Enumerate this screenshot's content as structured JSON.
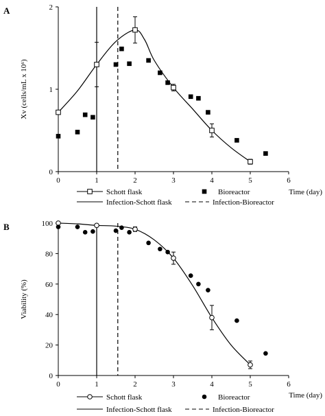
{
  "chart_data": [
    {
      "panel_label": "A",
      "type": "scatter",
      "ylabel": "Xv (cells/mL x 10⁶)",
      "xlabel": "Time (day)",
      "xlim": [
        0,
        6
      ],
      "ylim": [
        0,
        2
      ],
      "xticks": [
        0,
        1,
        2,
        3,
        4,
        5,
        6
      ],
      "yticks": [
        0,
        1,
        2
      ],
      "grid": false,
      "legend_position": "bottom",
      "series": [
        {
          "name": "Schott flask",
          "marker": "open-square",
          "x": [
            0,
            1,
            2,
            3,
            4,
            5
          ],
          "y": [
            0.72,
            1.3,
            1.72,
            1.02,
            0.5,
            0.12
          ],
          "err": [
            0.0,
            0.27,
            0.16,
            0.04,
            0.08,
            0.03
          ]
        },
        {
          "name": "Bioreactor",
          "marker": "filled-square",
          "x": [
            0.0,
            0.5,
            0.7,
            0.9,
            1.5,
            1.65,
            1.85,
            2.35,
            2.65,
            2.85,
            3.45,
            3.65,
            3.9,
            4.65,
            5.4
          ],
          "y": [
            0.43,
            0.48,
            0.69,
            0.66,
            1.3,
            1.49,
            1.31,
            1.35,
            1.2,
            1.08,
            0.91,
            0.89,
            0.72,
            0.38,
            0.22
          ]
        },
        {
          "name": "Infection-Schott flask",
          "line": "solid-vertical",
          "x": 1.0
        },
        {
          "name": "Infection-Bioreactor",
          "line": "dashed-vertical",
          "x": 1.55
        }
      ],
      "fit_curve": {
        "x": [
          0,
          0.5,
          1,
          1.5,
          2,
          2.25,
          2.5,
          3,
          3.5,
          4,
          4.5,
          5
        ],
        "y": [
          0.72,
          0.98,
          1.3,
          1.58,
          1.72,
          1.6,
          1.35,
          1.02,
          0.76,
          0.5,
          0.29,
          0.12
        ]
      }
    },
    {
      "panel_label": "B",
      "type": "scatter",
      "ylabel": "Viability (%)",
      "xlabel": "Time (day)",
      "xlim": [
        0,
        6
      ],
      "ylim": [
        0,
        100
      ],
      "xticks": [
        0,
        1,
        2,
        3,
        4,
        5,
        6
      ],
      "yticks": [
        0,
        20,
        40,
        60,
        80,
        100
      ],
      "grid": false,
      "legend_position": "bottom",
      "series": [
        {
          "name": "Schott flask",
          "marker": "open-circle",
          "x": [
            0,
            1,
            2,
            3,
            4,
            5
          ],
          "y": [
            100,
            98.5,
            96,
            77,
            38,
            7
          ],
          "err": [
            0,
            0,
            1.5,
            4,
            8,
            2.5
          ]
        },
        {
          "name": "Bioreactor",
          "marker": "filled-circle",
          "x": [
            0.0,
            0.5,
            0.7,
            0.9,
            1.5,
            1.65,
            1.85,
            2.35,
            2.65,
            2.85,
            3.45,
            3.65,
            3.9,
            4.65,
            5.4
          ],
          "y": [
            97.5,
            97.5,
            94,
            94.5,
            95,
            97,
            94,
            87,
            83,
            81,
            65.5,
            60,
            56,
            36,
            14.5
          ]
        },
        {
          "name": "Infection-Schott flask",
          "line": "solid-vertical",
          "x": 1.0
        },
        {
          "name": "Infection-Bioreactor",
          "line": "dashed-vertical",
          "x": 1.55
        }
      ],
      "fit_curve": {
        "x": [
          0,
          0.5,
          1,
          1.5,
          2,
          2.5,
          3,
          3.5,
          4,
          4.5,
          5
        ],
        "y": [
          100,
          99.5,
          98.5,
          98,
          96,
          89,
          77,
          59,
          38,
          20,
          7
        ]
      }
    }
  ]
}
